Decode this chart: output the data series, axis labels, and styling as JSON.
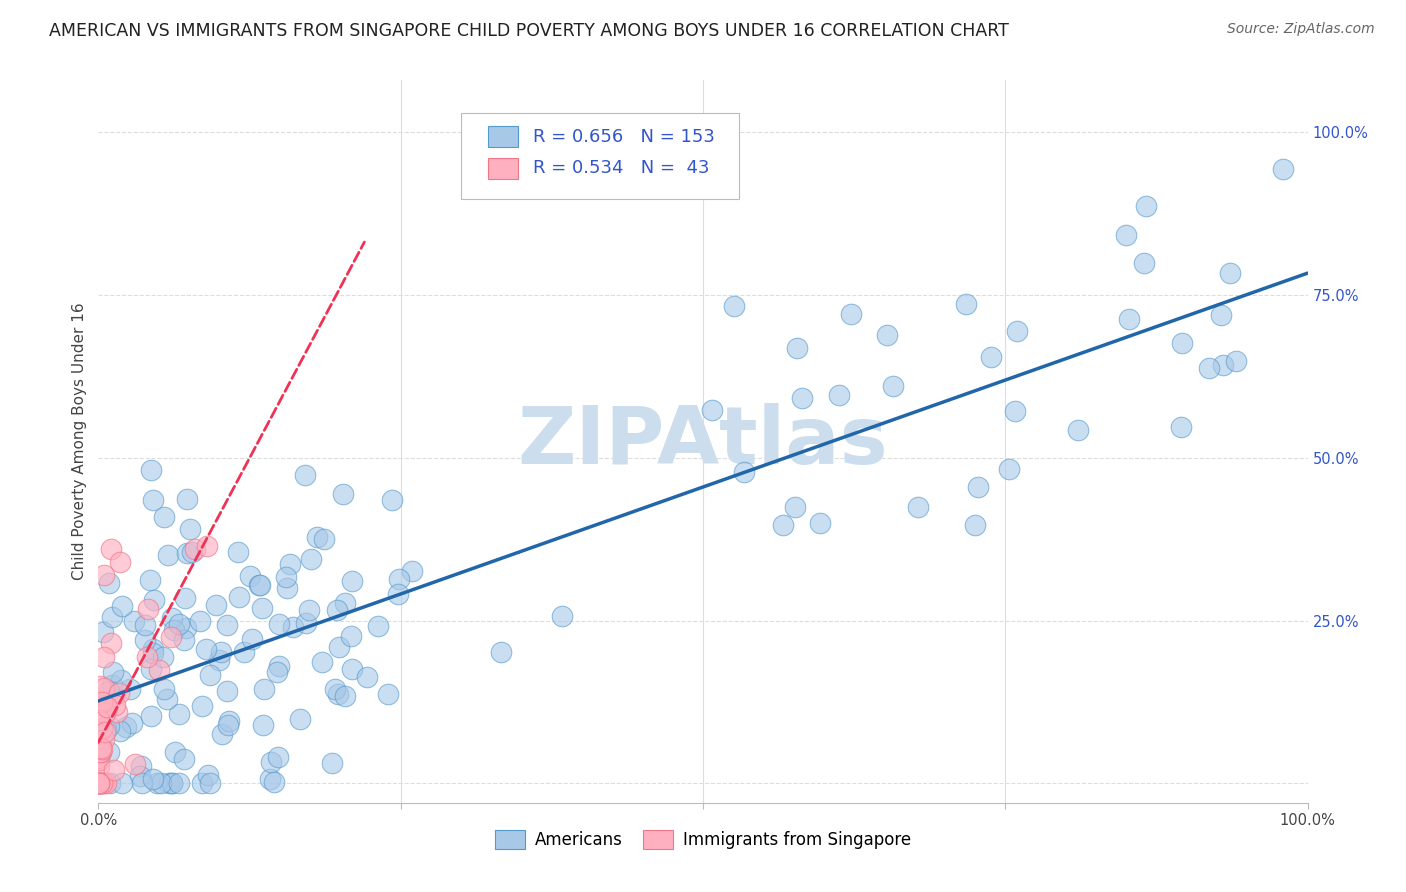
{
  "title": "AMERICAN VS IMMIGRANTS FROM SINGAPORE CHILD POVERTY AMONG BOYS UNDER 16 CORRELATION CHART",
  "source": "Source: ZipAtlas.com",
  "ylabel": "Child Poverty Among Boys Under 16",
  "legend_american_r": "0.656",
  "legend_american_n": "153",
  "legend_singapore_r": "0.534",
  "legend_singapore_n": "43",
  "legend_label_american": "Americans",
  "legend_label_singapore": "Immigrants from Singapore",
  "blue_dot_color": "#a8c8e8",
  "blue_edge_color": "#5599cc",
  "blue_line_color": "#2266aa",
  "pink_dot_color": "#ffb0c0",
  "pink_edge_color": "#ee7788",
  "pink_line_color": "#ee3355",
  "r_n_color": "#3355cc",
  "watermark_color": "#ccdded",
  "background_color": "#ffffff",
  "grid_color": "#dddddd",
  "title_fontsize": 12.5,
  "axis_label_fontsize": 11,
  "tick_fontsize": 10.5,
  "source_fontsize": 10
}
